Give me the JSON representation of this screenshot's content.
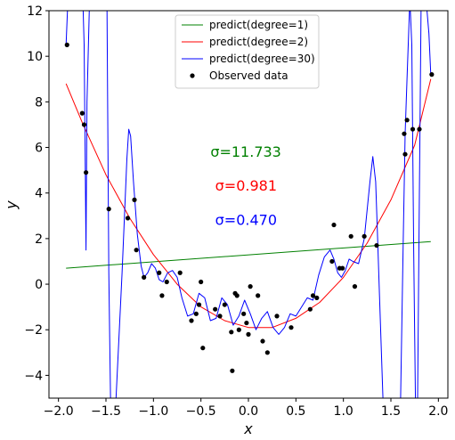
{
  "chart_data": {
    "type": "line",
    "xlabel": "x",
    "ylabel": "y",
    "xlim": [
      -2.1,
      2.1
    ],
    "ylim": [
      -5,
      12
    ],
    "xticks": [
      -2.0,
      -1.5,
      -1.0,
      -0.5,
      0.0,
      0.5,
      1.0,
      1.5,
      2.0
    ],
    "xtick_labels": [
      "−2.0",
      "−1.5",
      "−1.0",
      "−0.5",
      "0.0",
      "0.5",
      "1.0",
      "1.5",
      "2.0"
    ],
    "yticks": [
      -4,
      -2,
      0,
      2,
      4,
      6,
      8,
      10,
      12
    ],
    "ytick_labels": [
      "−4",
      "−2",
      "0",
      "2",
      "4",
      "6",
      "8",
      "10",
      "12"
    ],
    "legend_position": "top-center",
    "series": [
      {
        "name": "predict(degree=1)",
        "color": "#008000",
        "kind": "line",
        "x": [
          -1.92,
          1.92
        ],
        "y": [
          0.7,
          1.87
        ]
      },
      {
        "name": "predict(degree=2)",
        "color": "#ff0000",
        "kind": "line",
        "x": [
          -1.92,
          -1.75,
          -1.5,
          -1.25,
          -1.0,
          -0.75,
          -0.5,
          -0.25,
          0.0,
          0.25,
          0.5,
          0.75,
          1.0,
          1.25,
          1.5,
          1.75,
          1.92
        ],
        "y": [
          8.8,
          7.1,
          4.8,
          2.9,
          1.3,
          0.0,
          -1.0,
          -1.6,
          -1.9,
          -1.9,
          -1.5,
          -0.8,
          0.3,
          1.8,
          3.7,
          6.1,
          9.0
        ]
      },
      {
        "name": "predict(degree=30)",
        "color": "#0000ff",
        "kind": "line",
        "x": [
          -1.92,
          -1.9,
          -1.86,
          -1.8,
          -1.76,
          -1.75,
          -1.74,
          -1.73,
          -1.71,
          -1.7,
          -1.67,
          -1.62,
          -1.55,
          -1.49,
          -1.47,
          -1.45,
          -1.4,
          -1.33,
          -1.28,
          -1.26,
          -1.24,
          -1.21,
          -1.17,
          -1.13,
          -1.1,
          -1.06,
          -1.02,
          -0.98,
          -0.94,
          -0.9,
          -0.85,
          -0.8,
          -0.75,
          -0.7,
          -0.64,
          -0.58,
          -0.52,
          -0.46,
          -0.4,
          -0.34,
          -0.28,
          -0.22,
          -0.16,
          -0.1,
          -0.04,
          0.02,
          0.08,
          0.14,
          0.2,
          0.26,
          0.32,
          0.38,
          0.44,
          0.5,
          0.56,
          0.62,
          0.68,
          0.74,
          0.8,
          0.86,
          0.9,
          0.94,
          0.98,
          1.02,
          1.06,
          1.1,
          1.16,
          1.22,
          1.28,
          1.31,
          1.34,
          1.36,
          1.38,
          1.42,
          1.48,
          1.55,
          1.6,
          1.63,
          1.65,
          1.67,
          1.7,
          1.72,
          1.74,
          1.76,
          1.78,
          1.8,
          1.82,
          1.86,
          1.9,
          1.92
        ],
        "y": [
          10.5,
          12.5,
          13,
          13,
          12.5,
          12,
          12,
          10.5,
          1.5,
          8,
          13,
          13,
          13,
          12.5,
          0.5,
          -5.5,
          -5.5,
          0.5,
          5.5,
          6.8,
          6.5,
          4.5,
          2.2,
          0.8,
          0.3,
          0.5,
          0.9,
          0.7,
          0.2,
          0.1,
          0.5,
          0.6,
          0.3,
          -0.6,
          -1.4,
          -1.3,
          -0.4,
          -0.6,
          -1.6,
          -1.5,
          -0.6,
          -0.9,
          -1.8,
          -1.4,
          -0.7,
          -1.3,
          -2.0,
          -1.5,
          -1.2,
          -1.9,
          -2.2,
          -1.9,
          -1.3,
          -1.4,
          -1.0,
          -0.6,
          -0.7,
          0.4,
          1.2,
          1.5,
          1.1,
          0.5,
          0.3,
          0.6,
          1.1,
          1.0,
          0.9,
          2.0,
          4.5,
          5.6,
          4.5,
          2.0,
          -0.5,
          -5.5,
          -5.5,
          -5.5,
          -5.5,
          2,
          6.6,
          9,
          12.5,
          10.5,
          1.5,
          -5.5,
          -5.5,
          4,
          13,
          13,
          11,
          9.2
        ]
      },
      {
        "name": "Observed data",
        "color": "#000000",
        "kind": "scatter",
        "x": [
          -1.91,
          -1.75,
          -1.73,
          -1.71,
          -1.47,
          -1.27,
          -1.2,
          -1.18,
          -1.1,
          -0.94,
          -0.91,
          -0.86,
          -0.72,
          -0.6,
          -0.55,
          -0.52,
          -0.5,
          -0.48,
          -0.35,
          -0.3,
          -0.25,
          -0.18,
          -0.17,
          -0.14,
          -0.12,
          -0.1,
          -0.05,
          -0.02,
          0.0,
          0.02,
          0.1,
          0.15,
          0.2,
          0.3,
          0.45,
          0.65,
          0.68,
          0.72,
          0.88,
          0.9,
          0.96,
          0.99,
          1.08,
          1.12,
          1.22,
          1.35,
          1.64,
          1.65,
          1.67,
          1.73,
          1.8,
          1.93
        ],
        "y": [
          10.5,
          7.5,
          7.0,
          4.9,
          3.3,
          2.9,
          3.7,
          1.5,
          0.3,
          0.5,
          -0.5,
          0.1,
          0.5,
          -1.6,
          -1.3,
          -0.9,
          0.1,
          -2.8,
          -1.1,
          -1.4,
          -0.9,
          -2.1,
          -3.8,
          -0.4,
          -0.5,
          -2.0,
          -1.3,
          -1.7,
          -2.2,
          -0.1,
          -0.5,
          -2.5,
          -3.0,
          -1.4,
          -1.9,
          -1.1,
          -0.5,
          -0.6,
          1.0,
          2.6,
          0.7,
          0.7,
          2.1,
          -0.1,
          2.1,
          1.7,
          6.6,
          5.7,
          7.2,
          6.8,
          6.8,
          9.2
        ]
      }
    ],
    "annotations": [
      {
        "text": "σ=11.733",
        "color": "#008000",
        "x": -0.4,
        "y": 5.6
      },
      {
        "text": "σ=0.981",
        "color": "#ff0000",
        "x": -0.35,
        "y": 4.1
      },
      {
        "text": "σ=0.470",
        "color": "#0000ff",
        "x": -0.35,
        "y": 2.6
      }
    ]
  }
}
